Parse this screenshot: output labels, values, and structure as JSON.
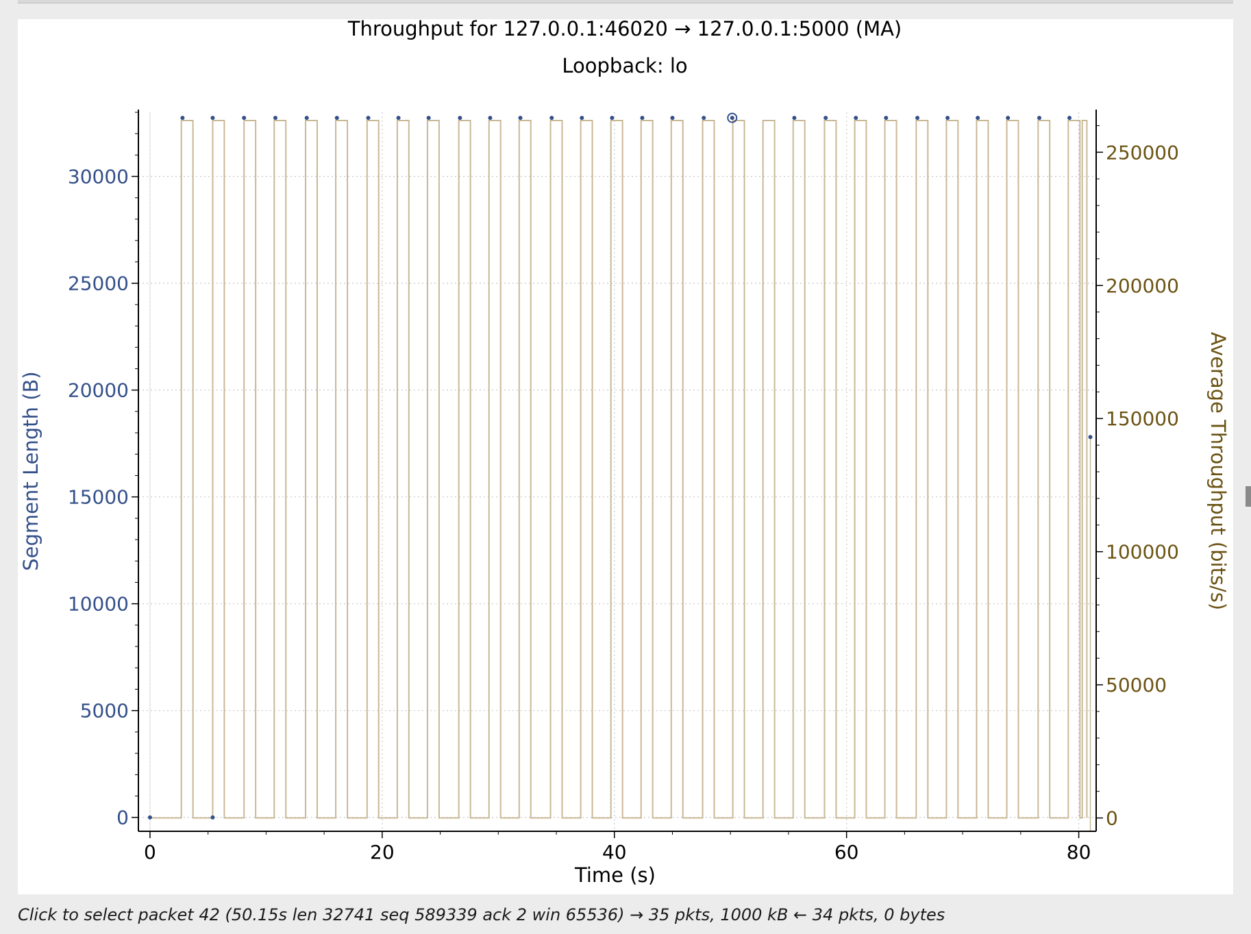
{
  "window": {
    "status_text": "Click to select packet 42 (50.15s len 32741 seq 589339 ack 2 win 65536) → 35 pkts, 1000 kB ← 34 pkts, 0 bytes"
  },
  "colors": {
    "segment_points": "#34508a",
    "throughput_line": "#c9b896",
    "right_axis": "#6b5313",
    "grid": "#c8c8c8"
  },
  "chart_data": {
    "type": "line",
    "title": "Throughput for 127.0.0.1:46020 → 127.0.0.1:5000 (MA)",
    "subtitle": "Loopback: lo",
    "xlabel": "Time (s)",
    "ylabel_left": "Segment Length (B)",
    "ylabel_right": "Average Throughput (bits/s)",
    "xlim": [
      -1,
      81.5
    ],
    "ylim_left": [
      -650,
      33000
    ],
    "ylim_right": [
      -5000,
      265000
    ],
    "x_ticks": [
      "0",
      "20",
      "40",
      "60",
      "80"
    ],
    "y_left_ticks": [
      "0",
      "5000",
      "10000",
      "15000",
      "20000",
      "25000",
      "30000"
    ],
    "y_right_ticks": [
      "0",
      "50000",
      "100000",
      "150000",
      "200000",
      "250000"
    ],
    "grid": true,
    "series": [
      {
        "name": "Segment Length (B)",
        "kind": "scatter",
        "points": [
          [
            0,
            0
          ],
          [
            2.8,
            32741
          ],
          [
            5.4,
            0
          ],
          [
            5.4,
            32741
          ],
          [
            8.1,
            32741
          ],
          [
            10.8,
            32741
          ],
          [
            13.5,
            32741
          ],
          [
            16.1,
            32741
          ],
          [
            18.8,
            32741
          ],
          [
            21.4,
            32741
          ],
          [
            24.0,
            32741
          ],
          [
            26.7,
            32741
          ],
          [
            29.3,
            32741
          ],
          [
            31.9,
            32741
          ],
          [
            34.6,
            32741
          ],
          [
            37.2,
            32741
          ],
          [
            39.8,
            32741
          ],
          [
            42.4,
            32741
          ],
          [
            45.0,
            32741
          ],
          [
            47.7,
            32741
          ],
          [
            55.5,
            32741
          ],
          [
            58.2,
            32741
          ],
          [
            60.8,
            32741
          ],
          [
            63.4,
            32741
          ],
          [
            66.1,
            32741
          ],
          [
            68.7,
            32741
          ],
          [
            71.3,
            32741
          ],
          [
            73.9,
            32741
          ],
          [
            76.6,
            32741
          ],
          [
            79.2,
            32741
          ],
          [
            81.0,
            17800
          ]
        ],
        "selected_point": [
          50.15,
          32741
        ]
      },
      {
        "name": "Average Throughput (bits/s)",
        "kind": "line",
        "pulse_starts": [
          2.7,
          5.4,
          8.1,
          10.7,
          13.4,
          16.0,
          18.7,
          21.3,
          23.9,
          26.6,
          29.2,
          31.8,
          34.5,
          37.1,
          39.7,
          42.3,
          44.9,
          47.6,
          50.2,
          52.8,
          55.4,
          58.1,
          60.7,
          63.3,
          66.0,
          68.6,
          71.2,
          73.8,
          76.5,
          79.1
        ],
        "pulse_width": 1.0,
        "pulse_value": 261928,
        "final_step": [
          80.3,
          80.7
        ],
        "x_end": 80.7
      }
    ]
  }
}
